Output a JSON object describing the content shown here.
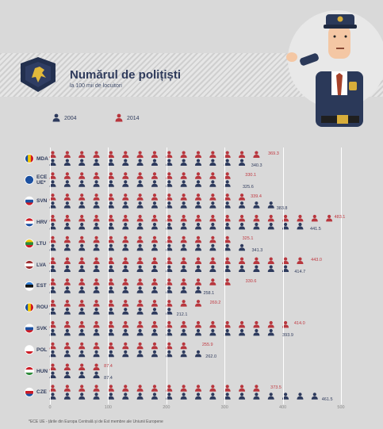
{
  "title": "Numărul de polițiști",
  "subtitle": "la 100 mii de locuitori",
  "legend": {
    "y2004": "2004",
    "y2014": "2014"
  },
  "footnote": "*ECE UE - țările din Europa Centrală și de Est membre ale Uniunii Europene",
  "colors": {
    "y2004": "#2d3a5d",
    "y2014": "#b8363d",
    "background": "#d9d9d9",
    "title": "#2f3b5c"
  },
  "chart_data": {
    "type": "bar",
    "categories": [
      "MDA",
      "ECE UE*",
      "SVN",
      "HRV",
      "LTU",
      "LVA",
      "EST",
      "ROU",
      "SVK",
      "POL",
      "HUN",
      "CZE"
    ],
    "series": [
      {
        "name": "2014",
        "values": [
          369.3,
          330.1,
          339.4,
          483.1,
          325.1,
          443.0,
          330.6,
          269.2,
          414.0,
          255.9,
          87.4,
          373.5
        ]
      },
      {
        "name": "2004",
        "values": [
          340.3,
          325.6,
          383.8,
          441.5,
          341.3,
          414.7,
          258.1,
          212.1,
          393.9,
          262.0,
          87.4,
          461.5
        ]
      }
    ],
    "value_labels_2014": [
      "369.3",
      "330.1",
      "339.4",
      "483.1",
      "325.1",
      "443.0",
      "330.6",
      "269.2",
      "414.0",
      "255.9",
      "87.4",
      "373.5"
    ],
    "value_labels_2004": [
      "340.3",
      "325.6",
      "383.8",
      "441.5",
      "341.3",
      "414.7",
      "258.1",
      "212.1",
      "393.9",
      "262.0",
      "87.4",
      "461.5"
    ],
    "xlim": [
      0,
      500
    ],
    "xticks": [
      "0",
      "100",
      "200",
      "300",
      "400",
      "500"
    ],
    "grid": true
  }
}
